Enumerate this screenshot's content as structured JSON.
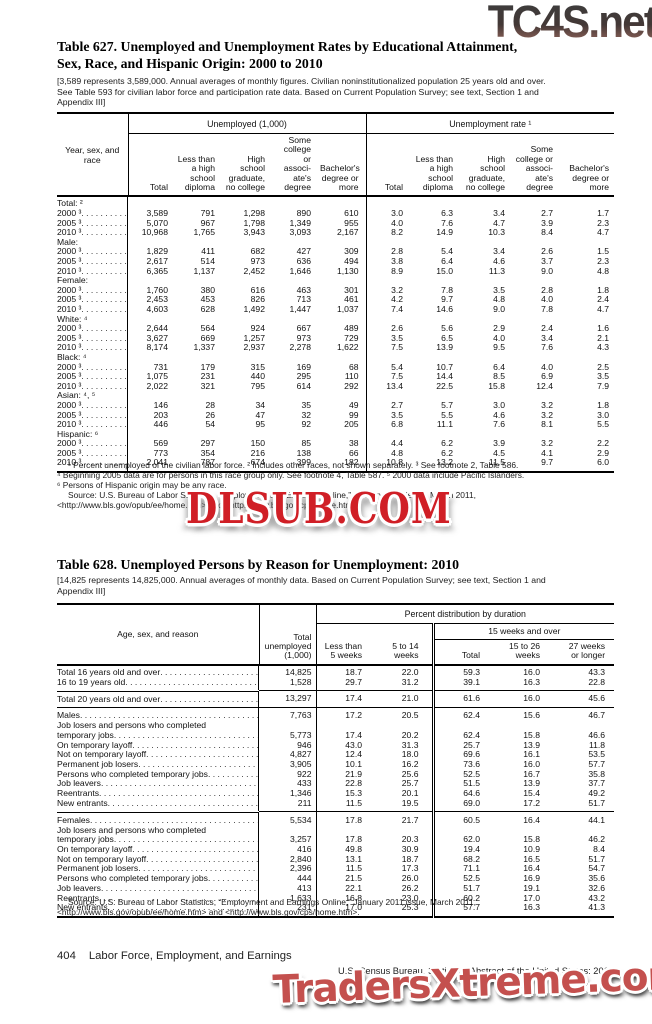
{
  "watermarks": {
    "top": "TC4S.net",
    "middle": "DLSUB.COM",
    "bottom": "TradersXtreme.com",
    "middle_color": "#d01f26",
    "bottom_color": "#c4504e"
  },
  "table627": {
    "title": "Table 627. Unemployed and Unemployment Rates by Educational Attainment,\nSex, Race, and Hispanic Origin: 2000 to 2010",
    "note": "[3,589 represents 3,589,000. Annual averages of monthly figures. Civilian noninstitutionalized population 25 years old and over.\nSee Table 593 for civilian labor force and participation rate data. Based on Current Population Survey; see text, Section 1 and\nAppendix III]",
    "stub_header": "Year, sex, and\nrace",
    "span_headers": [
      "Unemployed (1,000)",
      "Unemployment rate ¹"
    ],
    "columns": [
      "Total",
      "Less than\na high\nschool\ndiploma",
      "High\nschool\ngraduate,\nno college",
      "Some\ncollege or\nassoci-\nate's\ndegree",
      "Bachelor's\ndegree or\nmore"
    ],
    "rows": [
      {
        "l": "Total: ²",
        "g": true
      },
      {
        "l": "2000 ³",
        "ind": 1,
        "c": [
          "3,589",
          "791",
          "1,298",
          "890",
          "610",
          "3.0",
          "6.3",
          "3.4",
          "2.7",
          "1.7"
        ]
      },
      {
        "l": "2005 ³",
        "ind": 1,
        "c": [
          "5,070",
          "967",
          "1,798",
          "1,349",
          "955",
          "4.0",
          "7.6",
          "4.7",
          "3.9",
          "2.3"
        ]
      },
      {
        "l": "2010 ³",
        "ind": 1,
        "c": [
          "10,968",
          "1,765",
          "3,943",
          "3,093",
          "2,167",
          "8.2",
          "14.9",
          "10.3",
          "8.4",
          "4.7"
        ]
      },
      {
        "l": "Male:",
        "g": true
      },
      {
        "l": "2000 ³",
        "ind": 1,
        "c": [
          "1,829",
          "411",
          "682",
          "427",
          "309",
          "2.8",
          "5.4",
          "3.4",
          "2.6",
          "1.5"
        ]
      },
      {
        "l": "2005 ³",
        "ind": 1,
        "c": [
          "2,617",
          "514",
          "973",
          "636",
          "494",
          "3.8",
          "6.4",
          "4.6",
          "3.7",
          "2.3"
        ]
      },
      {
        "l": "2010 ³",
        "ind": 1,
        "c": [
          "6,365",
          "1,137",
          "2,452",
          "1,646",
          "1,130",
          "8.9",
          "15.0",
          "11.3",
          "9.0",
          "4.8"
        ]
      },
      {
        "l": "Female:",
        "g": true
      },
      {
        "l": "2000 ³",
        "ind": 1,
        "c": [
          "1,760",
          "380",
          "616",
          "463",
          "301",
          "3.2",
          "7.8",
          "3.5",
          "2.8",
          "1.8"
        ]
      },
      {
        "l": "2005 ³",
        "ind": 1,
        "c": [
          "2,453",
          "453",
          "826",
          "713",
          "461",
          "4.2",
          "9.7",
          "4.8",
          "4.0",
          "2.4"
        ]
      },
      {
        "l": "2010 ³",
        "ind": 1,
        "c": [
          "4,603",
          "628",
          "1,492",
          "1,447",
          "1,037",
          "7.4",
          "14.6",
          "9.0",
          "7.8",
          "4.7"
        ]
      },
      {
        "l": "White: ⁴",
        "g": true
      },
      {
        "l": "2000 ³",
        "ind": 1,
        "c": [
          "2,644",
          "564",
          "924",
          "667",
          "489",
          "2.6",
          "5.6",
          "2.9",
          "2.4",
          "1.6"
        ]
      },
      {
        "l": "2005 ³",
        "ind": 1,
        "c": [
          "3,627",
          "669",
          "1,257",
          "973",
          "729",
          "3.5",
          "6.5",
          "4.0",
          "3.4",
          "2.1"
        ]
      },
      {
        "l": "2010 ³",
        "ind": 1,
        "c": [
          "8,174",
          "1,337",
          "2,937",
          "2,278",
          "1,622",
          "7.5",
          "13.9",
          "9.5",
          "7.6",
          "4.3"
        ]
      },
      {
        "l": "Black: ⁴",
        "g": true
      },
      {
        "l": "2000 ³",
        "ind": 1,
        "c": [
          "731",
          "179",
          "315",
          "169",
          "68",
          "5.4",
          "10.7",
          "6.4",
          "4.0",
          "2.5"
        ]
      },
      {
        "l": "2005 ³",
        "ind": 1,
        "c": [
          "1,075",
          "231",
          "440",
          "295",
          "110",
          "7.5",
          "14.4",
          "8.5",
          "6.9",
          "3.5"
        ]
      },
      {
        "l": "2010 ³",
        "ind": 1,
        "c": [
          "2,022",
          "321",
          "795",
          "614",
          "292",
          "13.4",
          "22.5",
          "15.8",
          "12.4",
          "7.9"
        ]
      },
      {
        "l": "Asian: ⁴, ⁵",
        "g": true
      },
      {
        "l": "2000 ³",
        "ind": 1,
        "c": [
          "146",
          "28",
          "34",
          "35",
          "49",
          "2.7",
          "5.7",
          "3.0",
          "3.2",
          "1.8"
        ]
      },
      {
        "l": "2005 ³",
        "ind": 1,
        "c": [
          "203",
          "26",
          "47",
          "32",
          "99",
          "3.5",
          "5.5",
          "4.6",
          "3.2",
          "3.0"
        ]
      },
      {
        "l": "2010 ³",
        "ind": 1,
        "c": [
          "446",
          "54",
          "95",
          "92",
          "205",
          "6.8",
          "11.1",
          "7.6",
          "8.1",
          "5.5"
        ]
      },
      {
        "l": "Hispanic: ⁶",
        "g": true
      },
      {
        "l": "2000 ³",
        "ind": 1,
        "c": [
          "569",
          "297",
          "150",
          "85",
          "38",
          "4.4",
          "6.2",
          "3.9",
          "3.2",
          "2.2"
        ]
      },
      {
        "l": "2005 ³",
        "ind": 1,
        "c": [
          "773",
          "354",
          "216",
          "138",
          "66",
          "4.8",
          "6.2",
          "4.5",
          "4.1",
          "2.9"
        ]
      },
      {
        "l": "2010 ³",
        "ind": 1,
        "c": [
          "2,041",
          "787",
          "674",
          "399",
          "182",
          "10.8",
          "13.2",
          "11.5",
          "9.7",
          "6.0"
        ]
      }
    ],
    "footnotes": "¹ Percent unemployed of the civilian labor force. ² Includes other races, not shown separately. ³ See footnote 2, Table 586.\n⁴ Beginning 2005 data are for persons in this race group only. See footnote 4, Table 587. ⁵ 2000 data include Pacific Islanders.\n⁶ Persons of Hispanic origin may be any race.",
    "source": "Source: U.S. Bureau of Labor Statistics, “Employment and Earnings Online,” January 2011 issue, March 2011,\n<http://www.bls.gov/opub/ee/home.htm> and <http://www.bls.gov/cps/home.htm>."
  },
  "table628": {
    "title": "Table 628. Unemployed Persons by Reason for Unemployment: 2010",
    "note": "[14,825 represents 14,825,000. Annual averages of monthly data. Based on Current Population Survey; see text, Section 1 and\nAppendix III]",
    "stub_header": "Age, sex, and reason",
    "total_header": "Total\nunemployed\n(1,000)",
    "span_header": "Percent distribution by duration",
    "span15_header": "15 weeks and over",
    "columns": [
      "Less than\n5 weeks",
      "5 to 14\nweeks",
      "Total",
      "15 to 26\nweeks",
      "27 weeks\nor longer"
    ],
    "rows": [
      {
        "l": "Total 16 years old and over",
        "b": true,
        "c": [
          "14,825",
          "18.7",
          "22.0",
          "59.3",
          "16.0",
          "43.3"
        ]
      },
      {
        "l": "16 to 19 years old",
        "ind": 1,
        "c": [
          "1,528",
          "29.7",
          "31.2",
          "39.1",
          "16.3",
          "22.8"
        ]
      },
      {
        "l": "Total 20 years old and over",
        "b": true,
        "rule": true,
        "c": [
          "13,297",
          "17.4",
          "21.0",
          "61.6",
          "16.0",
          "45.6"
        ]
      },
      {
        "l": "Males",
        "b": true,
        "ind": 2,
        "rule": true,
        "c": [
          "7,763",
          "17.2",
          "20.5",
          "62.4",
          "15.6",
          "46.7"
        ]
      },
      {
        "l": "Job losers and persons who completed",
        "w": true
      },
      {
        "l": "temporary jobs",
        "ind": 1,
        "c": [
          "5,773",
          "17.4",
          "20.2",
          "62.4",
          "15.8",
          "46.6"
        ]
      },
      {
        "l": "On temporary layoff",
        "ind": 1,
        "c": [
          "946",
          "43.0",
          "31.3",
          "25.7",
          "13.9",
          "11.8"
        ]
      },
      {
        "l": "Not on temporary layoff",
        "ind": 1,
        "c": [
          "4,827",
          "12.4",
          "18.0",
          "69.6",
          "16.1",
          "53.5"
        ]
      },
      {
        "l": "Permanent job losers",
        "ind": 2,
        "c": [
          "3,905",
          "10.1",
          "16.2",
          "73.6",
          "16.0",
          "57.7"
        ]
      },
      {
        "l": "Persons who completed temporary jobs",
        "ind": 2,
        "c": [
          "922",
          "21.9",
          "25.6",
          "52.5",
          "16.7",
          "35.8"
        ]
      },
      {
        "l": "Job leavers",
        "c": [
          "433",
          "22.8",
          "25.7",
          "51.5",
          "13.9",
          "37.7"
        ]
      },
      {
        "l": "Reentrants",
        "c": [
          "1,346",
          "15.3",
          "20.1",
          "64.6",
          "15.4",
          "49.2"
        ]
      },
      {
        "l": "New entrants",
        "c": [
          "211",
          "11.5",
          "19.5",
          "69.0",
          "17.2",
          "51.7"
        ]
      },
      {
        "l": "Females",
        "b": true,
        "ind": 2,
        "rule": true,
        "c": [
          "5,534",
          "17.8",
          "21.7",
          "60.5",
          "16.4",
          "44.1"
        ]
      },
      {
        "l": "Job losers and persons who completed",
        "w": true
      },
      {
        "l": "temporary jobs",
        "ind": 1,
        "c": [
          "3,257",
          "17.8",
          "20.3",
          "62.0",
          "15.8",
          "46.2"
        ]
      },
      {
        "l": "On temporary layoff",
        "ind": 1,
        "c": [
          "416",
          "49.8",
          "30.9",
          "19.4",
          "10.9",
          "8.4"
        ]
      },
      {
        "l": "Not on temporary layoff",
        "ind": 1,
        "c": [
          "2,840",
          "13.1",
          "18.7",
          "68.2",
          "16.5",
          "51.7"
        ]
      },
      {
        "l": "Permanent job losers",
        "ind": 2,
        "c": [
          "2,396",
          "11.5",
          "17.3",
          "71.1",
          "16.4",
          "54.7"
        ]
      },
      {
        "l": "Persons who completed temporary jobs",
        "ind": 2,
        "c": [
          "444",
          "21.5",
          "26.0",
          "52.5",
          "16.9",
          "35.6"
        ]
      },
      {
        "l": "Job leavers",
        "c": [
          "413",
          "22.1",
          "26.2",
          "51.7",
          "19.1",
          "32.6"
        ]
      },
      {
        "l": "Reentrants",
        "c": [
          "1,633",
          "16.8",
          "23.0",
          "60.2",
          "17.0",
          "43.2"
        ]
      },
      {
        "l": "New entrants",
        "c": [
          "231",
          "17.0",
          "25.3",
          "57.7",
          "16.3",
          "41.3"
        ]
      }
    ],
    "source": "Source: U.S. Bureau of Labor Statistics, “Employment and Earnings Online,” January 2011 issue, March 2011,\n<http://www.bls.gov/opub/ee/home.htm> and <http://www.bls.gov/cps/home.htm>."
  },
  "footer": {
    "page_number": "404",
    "section": "Labor Force, Employment, and Earnings",
    "credit": "U.S. Census Bureau, Statistical Abstract of the United States: 2012"
  }
}
